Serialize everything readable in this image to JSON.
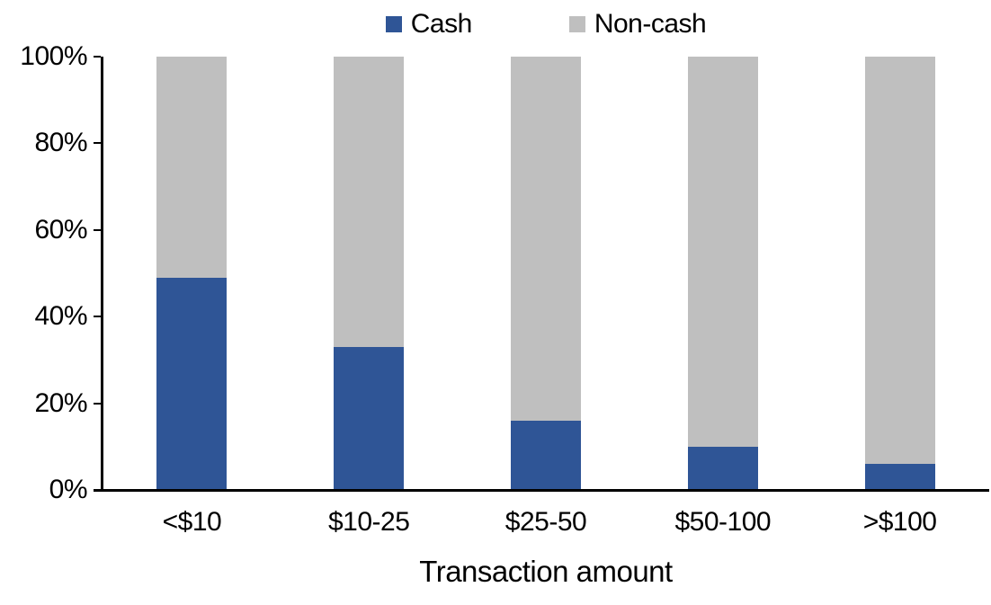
{
  "chart_data": {
    "type": "bar",
    "stacked": true,
    "percent": true,
    "title": "",
    "xlabel": "Transaction amount",
    "ylabel": "",
    "categories": [
      "<$10",
      "$10-25",
      "$25-50",
      "$50-100",
      ">$100"
    ],
    "series": [
      {
        "name": "Cash",
        "color": "#2F5596",
        "values": [
          49,
          33,
          16,
          10,
          6
        ]
      },
      {
        "name": "Non-cash",
        "color": "#BFBFBF",
        "values": [
          51,
          67,
          84,
          90,
          94
        ]
      }
    ],
    "ylim": [
      0,
      100
    ],
    "ytick_step": 20,
    "ytick_labels": [
      "0%",
      "20%",
      "40%",
      "60%",
      "80%",
      "100%"
    ],
    "legend_position": "top",
    "grid": false,
    "axis_color": "#000000",
    "background_color": "#FFFFFF"
  }
}
